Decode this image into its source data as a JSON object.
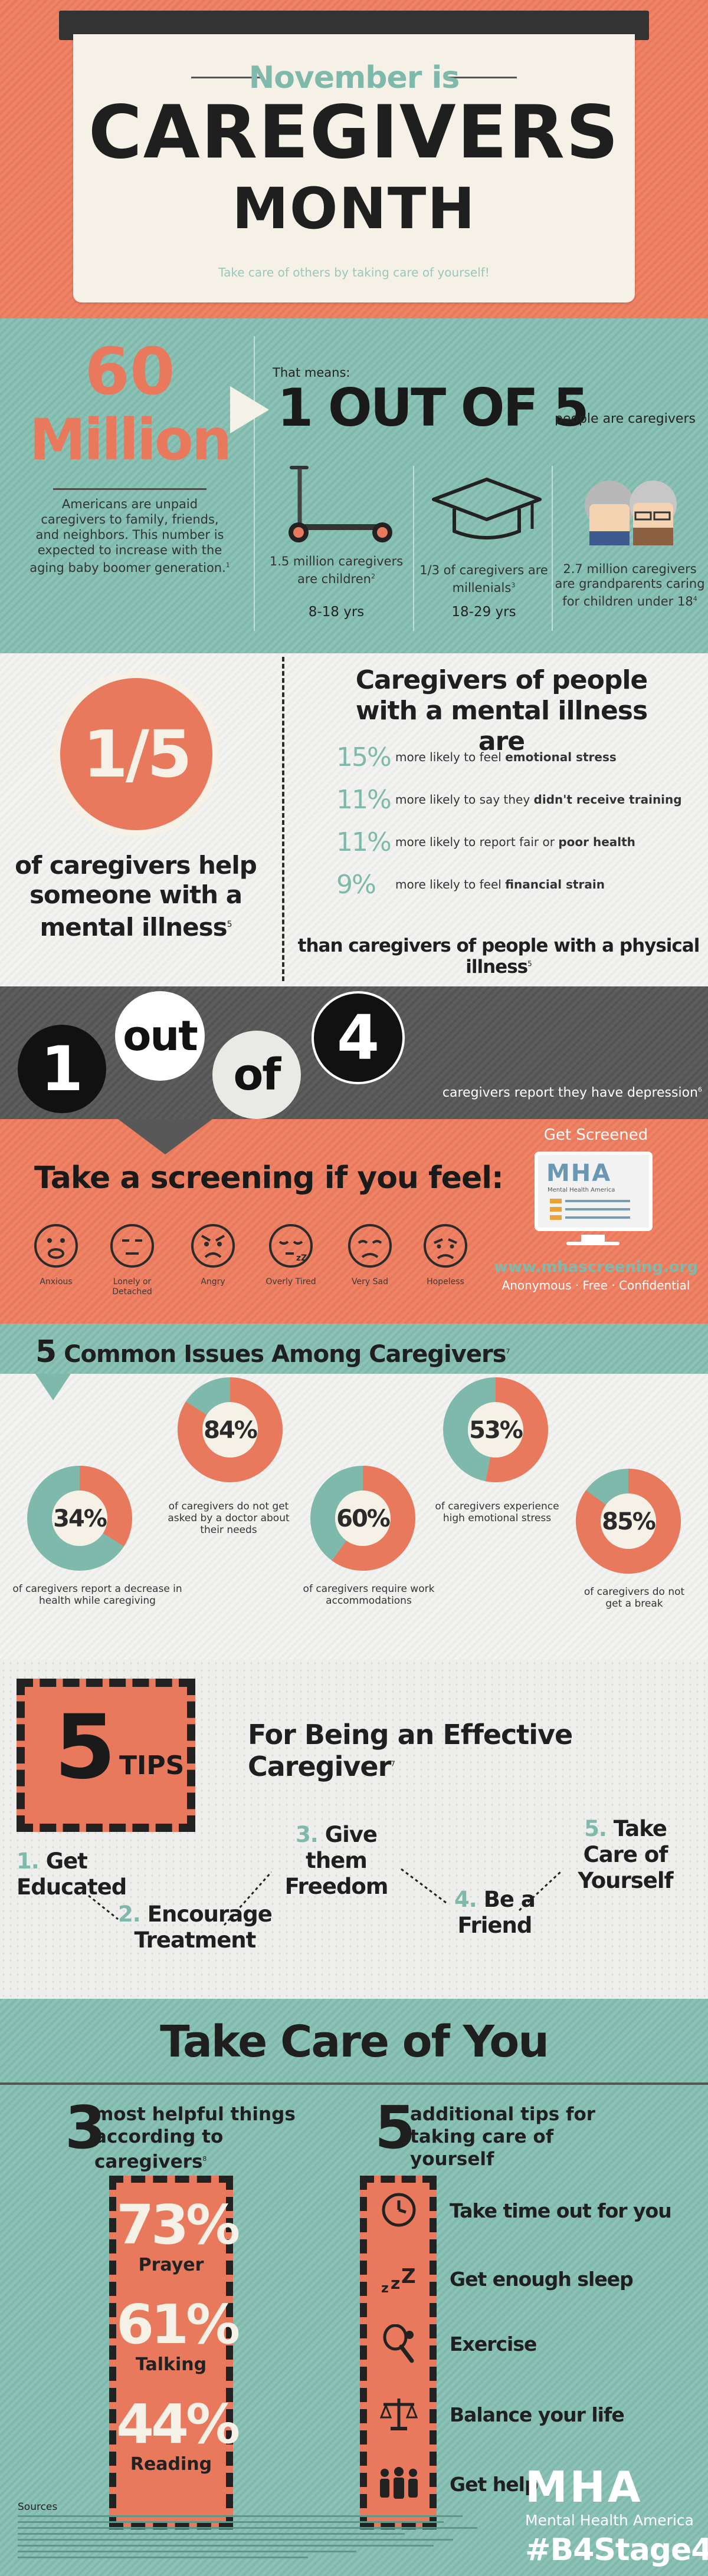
{
  "header": {
    "kicker": "November is",
    "title1": "CAREGIVERS",
    "title2": "MONTH",
    "tagline": "Take care of others by taking care of yourself!"
  },
  "colors": {
    "orange": "#e8795c",
    "teal": "#7fb9ac",
    "dark": "#2b2b2b",
    "cream": "#f5f1e6"
  },
  "sec2": {
    "big_num": "60",
    "big_unit": "Million",
    "desc": "Americans are unpaid caregivers to family, friends, and neighbors. This number is expected to increase with the aging baby boomer generation.",
    "desc_ref": "1",
    "means_label": "That means:",
    "means_big": "1 OUT OF 5",
    "means_suffix": "people are caregivers",
    "stats": [
      {
        "text": "1.5 million caregivers are children",
        "ref": "2",
        "age": "8-18 yrs",
        "icon": "scooter-icon"
      },
      {
        "text": "1/3 of caregivers are millenials",
        "ref": "3",
        "age": "18-29 yrs",
        "icon": "graduation-cap-icon"
      },
      {
        "text": "2.7 million caregivers are grandparents caring for children under 18",
        "ref": "4",
        "age": "",
        "icon": "grandparents-icon"
      }
    ]
  },
  "sec3": {
    "fraction": "1/5",
    "left_text": "of caregivers help someone with a mental illness",
    "left_ref": "5",
    "title": "Caregivers of people with a mental illness are",
    "rows": [
      {
        "pct": "15%",
        "pre": "more likely to feel ",
        "bold": "emotional stress"
      },
      {
        "pct": "11%",
        "pre": "more likely to say they ",
        "bold": "didn't receive training"
      },
      {
        "pct": "11%",
        "pre": "more likely to report fair or ",
        "bold": "poor health"
      },
      {
        "pct": "9%",
        "pre": "more likely to feel ",
        "bold": "financial strain"
      }
    ],
    "footer": "than caregivers of people with a physical illness",
    "footer_ref": "5"
  },
  "sec4": {
    "w1": "1",
    "w2": "out",
    "w3": "of",
    "w4": "4",
    "caption": "caregivers report they have depression",
    "ref": "6"
  },
  "sec5": {
    "title": "Take a screening if you feel:",
    "get_screened": "Get Screened",
    "logo": "MHA",
    "logo_sub": "Mental Health America",
    "url": "www.mhascreening.org",
    "tagline": "Anonymous · Free · Confidential",
    "faces": [
      {
        "label": "Anxious",
        "icon": "anxious-face-icon"
      },
      {
        "label": "Lonely or Detached",
        "icon": "lonely-face-icon"
      },
      {
        "label": "Angry",
        "icon": "angry-face-icon"
      },
      {
        "label": "Overly Tired",
        "icon": "tired-face-icon"
      },
      {
        "label": "Very Sad",
        "icon": "sad-face-icon"
      },
      {
        "label": "Hopeless",
        "icon": "hopeless-face-icon"
      }
    ]
  },
  "sec6": {
    "num": "5",
    "title": "Common Issues Among Caregivers",
    "ref": "7",
    "issues": [
      {
        "value": 34,
        "label": "34%",
        "text": "of caregivers report a decrease in health while caregiving"
      },
      {
        "value": 84,
        "label": "84%",
        "text": "of caregivers do not get asked by a doctor about their needs"
      },
      {
        "value": 60,
        "label": "60%",
        "text": "of caregivers require work accommodations"
      },
      {
        "value": 53,
        "label": "53%",
        "text": "of caregivers experience high emotional stress"
      },
      {
        "value": 85,
        "label": "85%",
        "text": "of caregivers do not get a break"
      }
    ]
  },
  "sec7": {
    "num": "5",
    "tips_word": "TIPS",
    "title": "For Being an Effective Caregiver",
    "ref": "7",
    "tips": [
      {
        "n": "1.",
        "l1": "Get",
        "l2": "Educated"
      },
      {
        "n": "2.",
        "l1": "Encourage",
        "l2": "Treatment"
      },
      {
        "n": "3.",
        "l1": "Give",
        "l2": "them Freedom"
      },
      {
        "n": "4.",
        "l1": "Be a",
        "l2": "Friend"
      },
      {
        "n": "5.",
        "l1": "Take Care of",
        "l2": "Yourself"
      }
    ]
  },
  "sec8": {
    "title": "Take Care of You",
    "left_num": "3",
    "left_title": "most helpful things according to caregivers",
    "left_ref": "8",
    "right_num": "5",
    "right_title": "additional tips for taking care of yourself",
    "helpful": [
      {
        "pct": "73%",
        "label": "Prayer"
      },
      {
        "pct": "61%",
        "label": "Talking"
      },
      {
        "pct": "44%",
        "label": "Reading"
      }
    ],
    "selfcare": [
      {
        "text": "Take time out for you",
        "icon": "clock-icon"
      },
      {
        "text": "Get enough sleep",
        "icon": "sleep-zzz-icon"
      },
      {
        "text": "Exercise",
        "icon": "tennis-racket-icon"
      },
      {
        "text": "Balance your life",
        "icon": "scales-icon"
      },
      {
        "text": "Get help",
        "icon": "people-group-icon"
      }
    ]
  },
  "footer": {
    "sources": "Sources",
    "logo": "MHA",
    "logo_sub": "Mental Health America",
    "hashtag": "#B4Stage4"
  }
}
